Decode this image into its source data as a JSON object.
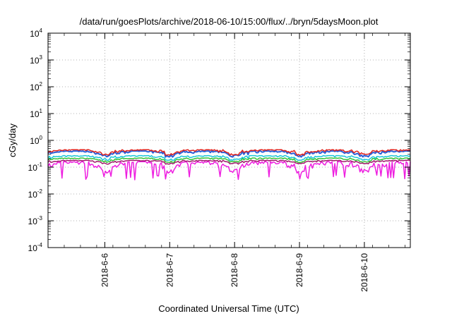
{
  "chart_data": {
    "type": "line",
    "title": "/data/run/goesPlots/archive/2018-06-10/15:00/flux/../bryn/5daysMoon.plot",
    "xlabel": "Coordinated Universal Time (UTC)",
    "ylabel": "cGy/day",
    "yscale": "log",
    "ylim": [
      0.0001,
      10000
    ],
    "xlim": [
      "2018-06-05 03:00",
      "2018-06-10 17:00"
    ],
    "grid": true,
    "x_ticks": [
      "2018-6-6",
      "2018-6-7",
      "2018-6-8",
      "2018-6-9",
      "2018-6-10"
    ],
    "y_ticks": [
      {
        "base": "10",
        "exp": "-4"
      },
      {
        "base": "10",
        "exp": "-3"
      },
      {
        "base": "10",
        "exp": "-2"
      },
      {
        "base": "10",
        "exp": "-1"
      },
      {
        "base": "10",
        "exp": "0"
      },
      {
        "base": "10",
        "exp": "1"
      },
      {
        "base": "10",
        "exp": "2"
      },
      {
        "base": "10",
        "exp": "3"
      },
      {
        "base": "10",
        "exp": "4"
      }
    ],
    "series": [
      {
        "color": "#e0231e",
        "level_range": [
          0.28,
          0.45
        ]
      },
      {
        "color": "#2a5fd8",
        "level_range": [
          0.24,
          0.4
        ]
      },
      {
        "color": "#19c6d8",
        "level_range": [
          0.18,
          0.27
        ]
      },
      {
        "color": "#35c23a",
        "level_range": [
          0.15,
          0.22
        ]
      },
      {
        "color": "#a0196b",
        "level_range": [
          0.13,
          0.18
        ]
      },
      {
        "color": "#ee1ee0",
        "level_range": [
          0.06,
          0.16
        ]
      }
    ]
  }
}
